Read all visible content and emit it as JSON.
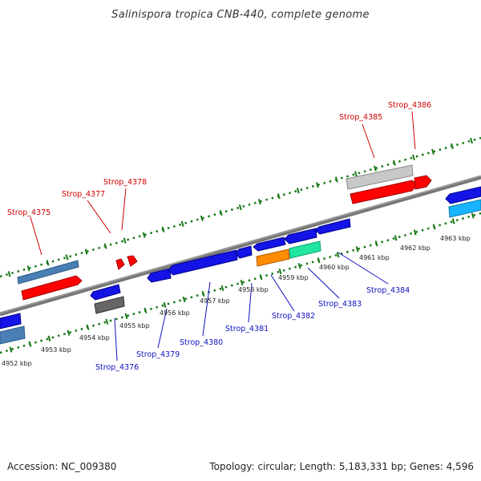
{
  "title": "Salinispora tropica CNB-440, complete genome",
  "footer": {
    "accession": "Accession: NC_009380",
    "topology": "Topology: circular; Length: 5,183,331 bp; Genes: 4,596"
  },
  "kbp_labels": [
    "4952 kbp",
    "4953 kbp",
    "4954 kbp",
    "4955 kbp",
    "4956 kbp",
    "4957 kbp",
    "4958 kbp",
    "4959 kbp",
    "4960 kbp",
    "4961 kbp",
    "4962 kbp",
    "4963 kbp"
  ],
  "genes_forward": [
    "Strop_4375",
    "Strop_4377",
    "Strop_4378",
    "Strop_4385",
    "Strop_4386"
  ],
  "genes_reverse": [
    "Strop_4376",
    "Strop_4379",
    "Strop_4380",
    "Strop_4381",
    "Strop_4382",
    "Strop_4383",
    "Strop_4384"
  ],
  "colors": {
    "forward_label": "#d00000",
    "reverse_label": "#1010c0",
    "backbone": "#808080",
    "tick": "#1a7a1a",
    "gene_red": "#ff0000",
    "gene_blue": "#1414e6",
    "gene_steelblue": "#4a7fb5",
    "gene_orange": "#ff8c00",
    "gene_aqua": "#22e6a0",
    "gene_gray": "#666666",
    "gene_lightgray": "#c8c8c8",
    "gene_sky": "#19b4ff"
  }
}
